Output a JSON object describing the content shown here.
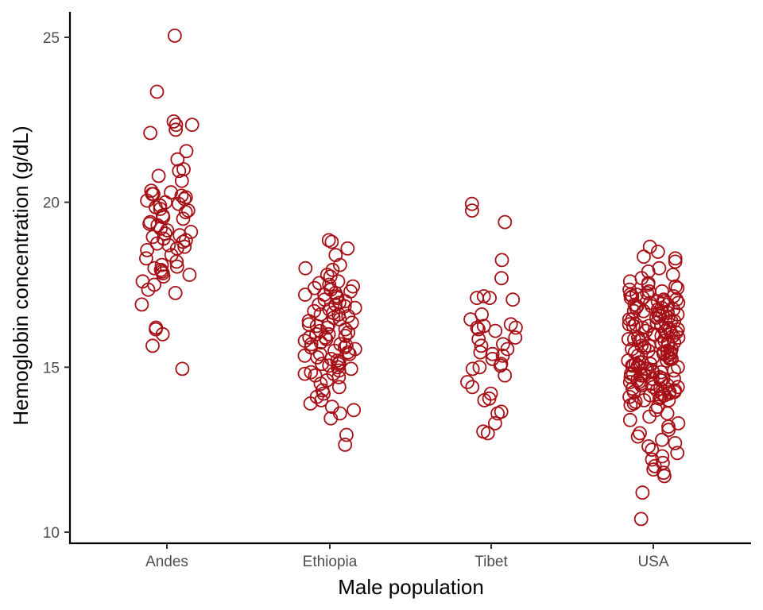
{
  "chart_data": {
    "type": "scatter",
    "jitter": true,
    "marker": "open-circle",
    "point_color": "#A50F15",
    "xlabel": "Male population",
    "ylabel": "Hemoglobin concentration (g/dL)",
    "categories": [
      "Andes",
      "Ethiopia",
      "Tibet",
      "USA"
    ],
    "ylim": [
      9.7,
      25.8
    ],
    "yticks": [
      10,
      15,
      20,
      25
    ],
    "grid": false,
    "series": [
      {
        "category": "Andes",
        "values": [
          25.05,
          23.35,
          22.45,
          22.35,
          22.35,
          22.2,
          22.1,
          21.55,
          21.3,
          21.0,
          20.95,
          20.8,
          20.65,
          20.35,
          20.3,
          20.25,
          20.25,
          20.2,
          20.15,
          20.1,
          20.05,
          20.0,
          19.95,
          19.9,
          19.85,
          19.8,
          19.75,
          19.7,
          19.6,
          19.55,
          19.5,
          19.4,
          19.35,
          19.3,
          19.2,
          19.15,
          19.1,
          19.05,
          19.0,
          18.95,
          18.9,
          18.85,
          18.8,
          18.75,
          18.7,
          18.65,
          18.6,
          18.55,
          18.4,
          18.3,
          18.2,
          18.1,
          18.05,
          18.0,
          17.95,
          17.9,
          17.85,
          17.8,
          17.75,
          17.6,
          17.5,
          17.35,
          17.25,
          16.9,
          16.2,
          16.15,
          16.0,
          15.65,
          14.95
        ]
      },
      {
        "category": "Ethiopia",
        "values": [
          18.85,
          18.8,
          18.6,
          18.4,
          18.1,
          18.0,
          17.95,
          17.8,
          17.75,
          17.6,
          17.55,
          17.5,
          17.45,
          17.4,
          17.35,
          17.3,
          17.25,
          17.2,
          17.15,
          17.1,
          17.05,
          17.0,
          16.95,
          16.9,
          16.85,
          16.8,
          16.75,
          16.7,
          16.65,
          16.6,
          16.55,
          16.5,
          16.45,
          16.4,
          16.35,
          16.3,
          16.25,
          16.2,
          16.15,
          16.1,
          16.05,
          16.0,
          15.95,
          15.9,
          15.85,
          15.8,
          15.75,
          15.7,
          15.65,
          15.6,
          15.55,
          15.5,
          15.45,
          15.4,
          15.35,
          15.3,
          15.25,
          15.2,
          15.15,
          15.1,
          15.05,
          15.0,
          14.95,
          14.9,
          14.85,
          14.8,
          14.75,
          14.7,
          14.6,
          14.5,
          14.4,
          14.3,
          14.2,
          14.1,
          14.0,
          13.9,
          13.8,
          13.7,
          13.6,
          13.45,
          12.95,
          12.65,
          16.6,
          16.3,
          16.0,
          15.7,
          15.4,
          15.1,
          14.8,
          16.9,
          17.2,
          15.9,
          15.6
        ]
      },
      {
        "category": "Tibet",
        "values": [
          19.95,
          19.75,
          19.4,
          18.25,
          17.7,
          17.15,
          17.1,
          17.1,
          17.05,
          16.6,
          16.45,
          16.3,
          16.25,
          16.2,
          16.2,
          16.15,
          16.1,
          15.9,
          15.85,
          15.7,
          15.65,
          15.55,
          15.45,
          15.4,
          15.35,
          15.25,
          15.1,
          15.05,
          15.0,
          14.95,
          14.75,
          14.55,
          14.4,
          14.2,
          14.05,
          14.0,
          13.65,
          13.6,
          13.3,
          13.05,
          13.0
        ]
      },
      {
        "category": "USA",
        "values": [
          18.65,
          18.5,
          18.35,
          18.3,
          18.2,
          18.0,
          17.9,
          17.8,
          17.7,
          17.6,
          17.55,
          17.5,
          17.45,
          17.4,
          17.35,
          17.3,
          17.25,
          17.2,
          17.15,
          17.1,
          17.05,
          17.0,
          16.95,
          16.9,
          16.85,
          16.8,
          16.75,
          16.7,
          16.65,
          16.6,
          16.55,
          16.5,
          16.45,
          16.4,
          16.35,
          16.3,
          16.25,
          16.2,
          16.15,
          16.1,
          16.05,
          16.0,
          15.95,
          15.9,
          15.85,
          15.8,
          15.75,
          15.7,
          15.65,
          15.6,
          15.55,
          15.5,
          15.45,
          15.4,
          15.35,
          15.3,
          15.25,
          15.2,
          15.15,
          15.1,
          15.05,
          15.0,
          14.95,
          14.9,
          14.85,
          14.8,
          14.75,
          14.7,
          14.65,
          14.6,
          14.55,
          14.5,
          14.45,
          14.4,
          14.35,
          14.3,
          14.25,
          14.2,
          14.15,
          14.1,
          14.05,
          14.0,
          13.9,
          13.8,
          13.7,
          13.6,
          13.5,
          13.4,
          13.3,
          13.2,
          13.1,
          13.0,
          12.9,
          12.8,
          12.7,
          12.6,
          12.5,
          12.4,
          12.3,
          12.2,
          12.1,
          12.0,
          11.9,
          11.8,
          11.7,
          11.2,
          10.4,
          17.2,
          16.8,
          16.4,
          16.0,
          15.6,
          15.2,
          14.8,
          14.4,
          14.0,
          17.0,
          16.6,
          16.2,
          15.8,
          15.4,
          15.0,
          14.6,
          14.2,
          16.9,
          16.5,
          16.1,
          15.7,
          15.3,
          14.9,
          14.5,
          14.1,
          17.3,
          16.7,
          16.3,
          15.9,
          15.5,
          15.1,
          14.7,
          14.3,
          16.95,
          16.55,
          16.15,
          15.75,
          15.35,
          14.95,
          14.55,
          14.15,
          17.1,
          16.45,
          16.05,
          15.65,
          15.25,
          14.85,
          14.45,
          13.95,
          17.15,
          16.75,
          16.35,
          15.95,
          15.55,
          15.15,
          14.75,
          14.35,
          16.85,
          16.25,
          15.85,
          15.45,
          15.05,
          14.65,
          14.25,
          13.85,
          17.05,
          16.65,
          16.25,
          15.85,
          15.45,
          15.05,
          14.65,
          14.25
        ]
      }
    ]
  }
}
